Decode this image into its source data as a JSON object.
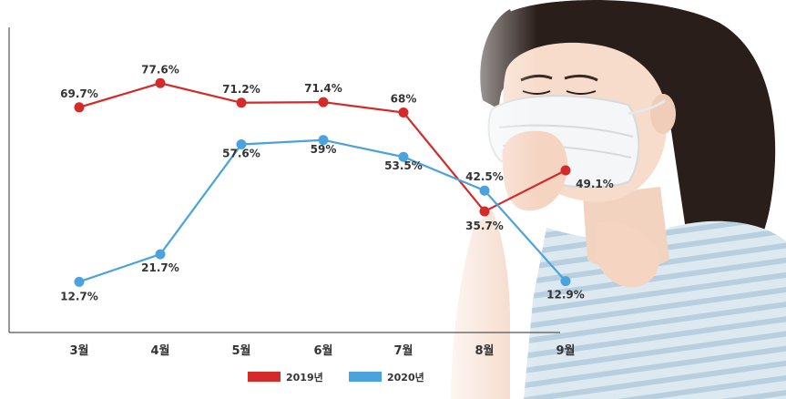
{
  "chart_data": {
    "type": "line",
    "title": "",
    "xlabel": "",
    "ylabel": "",
    "categories": [
      "3월",
      "4월",
      "5월",
      "6월",
      "7월",
      "8월",
      "9월"
    ],
    "ylim": [
      0,
      90
    ],
    "grid": false,
    "legend_position": "bottom",
    "series": [
      {
        "name": "2019년",
        "color": "#d42a2a",
        "values": [
          69.7,
          77.6,
          71.2,
          71.4,
          68,
          35.7,
          49.1
        ],
        "labels": [
          "69.7%",
          "77.6%",
          "71.2%",
          "71.4%",
          "68%",
          "35.7%",
          "49.1%"
        ]
      },
      {
        "name": "2020년",
        "color": "#4aa3dc",
        "values": [
          12.7,
          21.7,
          57.6,
          59,
          53.5,
          42.5,
          12.9
        ],
        "labels": [
          "12.7%",
          "21.7%",
          "57.6%",
          "59%",
          "53.5%",
          "42.5%",
          "12.9%"
        ]
      }
    ]
  }
}
